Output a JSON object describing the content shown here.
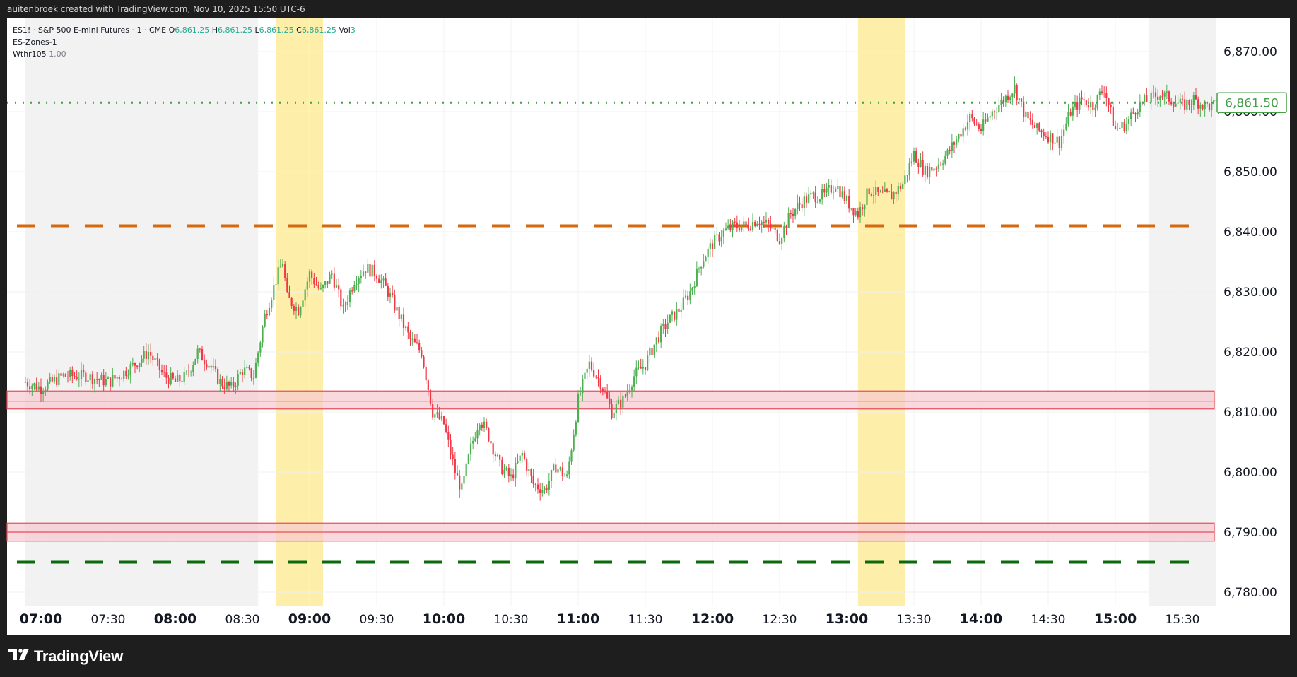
{
  "header": {
    "attribution": "auitenbroek created with TradingView.com, Nov 10, 2025 15:50 UTC-6"
  },
  "legend": {
    "symbol": "ES1! · S&P 500 E-mini Futures · 1 · CME",
    "o_label": "O",
    "o_value": "6,861.25",
    "h_label": "H",
    "h_value": "6,861.25",
    "l_label": "L",
    "l_value": "6,861.25",
    "c_label": "C",
    "c_value": "6,861.25",
    "vol_label": "Vol",
    "vol_value": "3",
    "indicator1": "ES-Zones-1",
    "indicator2_name": "Wthr105",
    "indicator2_value": "1.00"
  },
  "brand": {
    "name": "TradingView"
  },
  "colors": {
    "up": "#089981",
    "up_bright": "#26a69a",
    "candle_up": "#4caf50",
    "candle_down": "#f23645",
    "orange_line": "#d4690f",
    "green_line": "#0b6b0b",
    "dotted_price": "#43a047",
    "zone_fill": "#f7c9cf",
    "zone_border": "#e84c5a",
    "highlight": "#fdeeaa",
    "session_shade": "#f2f2f2"
  },
  "chart_data": {
    "type": "candlestick",
    "title": "ES1! · S&P 500 E-mini Futures · 1 · CME",
    "interval_minutes": 1,
    "x_range": [
      "06:53",
      "15:50"
    ],
    "ylim": [
      6776,
      6875
    ],
    "y_ticks": [
      6870,
      6860,
      6850,
      6840,
      6830,
      6820,
      6810,
      6800,
      6790,
      6780
    ],
    "y_tick_labels": [
      "6,870.00",
      "6,860.00",
      "6,850.00",
      "6,840.00",
      "6,830.00",
      "6,820.00",
      "6,810.00",
      "6,800.00",
      "6,790.00",
      "6,780.00"
    ],
    "x_ticks": [
      "07:00",
      "07:30",
      "08:00",
      "08:30",
      "09:00",
      "09:30",
      "10:00",
      "10:30",
      "11:00",
      "11:30",
      "12:00",
      "12:30",
      "13:00",
      "13:30",
      "14:00",
      "14:30",
      "15:00",
      "15:30"
    ],
    "x_ticks_bold": [
      "07:00",
      "08:00",
      "09:00",
      "10:00",
      "11:00",
      "12:00",
      "13:00",
      "14:00",
      "15:00"
    ],
    "last_price": 6861.5,
    "last_price_label": "6,861.50",
    "horizontal_lines": [
      {
        "price": 6841,
        "style": "dashed",
        "color": "orange"
      },
      {
        "price": 6785,
        "style": "dashed",
        "color": "green"
      }
    ],
    "zones": [
      {
        "low": 6810.5,
        "mid": 6811.8,
        "high": 6813.5
      },
      {
        "low": 6788.5,
        "mid": 6790,
        "high": 6791.5
      }
    ],
    "highlight_time_bands": [
      [
        "08:45",
        "09:06"
      ],
      [
        "13:05",
        "13:26"
      ]
    ],
    "shaded_time_bands": [
      [
        "06:53",
        "08:37"
      ],
      [
        "15:15",
        "15:50"
      ]
    ],
    "price_path": [
      [
        "06:53",
        6815
      ],
      [
        "07:00",
        6814
      ],
      [
        "07:10",
        6816
      ],
      [
        "07:20",
        6816
      ],
      [
        "07:30",
        6815
      ],
      [
        "07:35",
        6816
      ],
      [
        "07:42",
        6818
      ],
      [
        "07:48",
        6820
      ],
      [
        "07:55",
        6816
      ],
      [
        "08:00",
        6815
      ],
      [
        "08:05",
        6816
      ],
      [
        "08:10",
        6820
      ],
      [
        "08:15",
        6818
      ],
      [
        "08:20",
        6815
      ],
      [
        "08:25",
        6814
      ],
      [
        "08:30",
        6817
      ],
      [
        "08:35",
        6816
      ],
      [
        "08:40",
        6826
      ],
      [
        "08:45",
        6832
      ],
      [
        "08:48",
        6835
      ],
      [
        "08:50",
        6829
      ],
      [
        "08:55",
        6827
      ],
      [
        "09:00",
        6833
      ],
      [
        "09:05",
        6830
      ],
      [
        "09:10",
        6833
      ],
      [
        "09:15",
        6827
      ],
      [
        "09:20",
        6832
      ],
      [
        "09:25",
        6834
      ],
      [
        "09:30",
        6833
      ],
      [
        "09:35",
        6830
      ],
      [
        "09:40",
        6826
      ],
      [
        "09:45",
        6822
      ],
      [
        "09:50",
        6820
      ],
      [
        "09:55",
        6810
      ],
      [
        "10:00",
        6808
      ],
      [
        "10:05",
        6800
      ],
      [
        "10:08",
        6797
      ],
      [
        "10:12",
        6804
      ],
      [
        "10:16",
        6809
      ],
      [
        "10:20",
        6806
      ],
      [
        "10:25",
        6801
      ],
      [
        "10:30",
        6799
      ],
      [
        "10:35",
        6803
      ],
      [
        "10:40",
        6798
      ],
      [
        "10:45",
        6797
      ],
      [
        "10:50",
        6801
      ],
      [
        "10:55",
        6799
      ],
      [
        "11:00",
        6812
      ],
      [
        "11:05",
        6818
      ],
      [
        "11:10",
        6815
      ],
      [
        "11:15",
        6810
      ],
      [
        "11:20",
        6812
      ],
      [
        "11:25",
        6816
      ],
      [
        "11:30",
        6818
      ],
      [
        "11:35",
        6822
      ],
      [
        "11:40",
        6825
      ],
      [
        "11:45",
        6827
      ],
      [
        "11:50",
        6830
      ],
      [
        "11:55",
        6835
      ],
      [
        "12:00",
        6838
      ],
      [
        "12:05",
        6840
      ],
      [
        "12:10",
        6841
      ],
      [
        "12:15",
        6841
      ],
      [
        "12:20",
        6842
      ],
      [
        "12:25",
        6841
      ],
      [
        "12:30",
        6839
      ],
      [
        "12:35",
        6843
      ],
      [
        "12:40",
        6845
      ],
      [
        "12:45",
        6846
      ],
      [
        "12:50",
        6846
      ],
      [
        "12:55",
        6848
      ],
      [
        "13:00",
        6845
      ],
      [
        "13:05",
        6843
      ],
      [
        "13:10",
        6847
      ],
      [
        "13:15",
        6846
      ],
      [
        "13:20",
        6846
      ],
      [
        "13:25",
        6848
      ],
      [
        "13:30",
        6853
      ],
      [
        "13:35",
        6850
      ],
      [
        "13:40",
        6851
      ],
      [
        "13:45",
        6853
      ],
      [
        "13:50",
        6856
      ],
      [
        "13:55",
        6859
      ],
      [
        "14:00",
        6857
      ],
      [
        "14:05",
        6860
      ],
      [
        "14:10",
        6862
      ],
      [
        "14:15",
        6864
      ],
      [
        "14:20",
        6859
      ],
      [
        "14:25",
        6857
      ],
      [
        "14:30",
        6856
      ],
      [
        "14:35",
        6855
      ],
      [
        "14:40",
        6860
      ],
      [
        "14:45",
        6862
      ],
      [
        "14:50",
        6861
      ],
      [
        "14:55",
        6864
      ],
      [
        "15:00",
        6857
      ],
      [
        "15:05",
        6858
      ],
      [
        "15:10",
        6861
      ],
      [
        "15:15",
        6862
      ],
      [
        "15:20",
        6863
      ],
      [
        "15:25",
        6862
      ],
      [
        "15:30",
        6861
      ],
      [
        "15:35",
        6862
      ],
      [
        "15:40",
        6861
      ],
      [
        "15:45",
        6861
      ],
      [
        "15:50",
        6861.5
      ]
    ]
  }
}
